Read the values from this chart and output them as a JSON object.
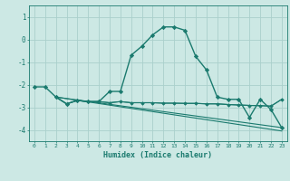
{
  "background_color": "#cce8e4",
  "grid_color": "#aad0cc",
  "line_color": "#1a7a6e",
  "xlabel": "Humidex (Indice chaleur)",
  "xlim": [
    -0.5,
    23.5
  ],
  "ylim": [
    -4.5,
    1.5
  ],
  "yticks": [
    1,
    0,
    -1,
    -2,
    -3,
    -4
  ],
  "xticks": [
    0,
    1,
    2,
    3,
    4,
    5,
    6,
    7,
    8,
    9,
    10,
    11,
    12,
    13,
    14,
    15,
    16,
    17,
    18,
    19,
    20,
    21,
    22,
    23
  ],
  "series": [
    {
      "x": [
        0,
        1,
        2,
        3,
        4,
        5,
        6,
        7,
        8,
        9,
        10,
        11,
        12,
        13,
        14,
        15,
        16,
        17,
        18,
        19,
        20,
        21,
        22,
        23
      ],
      "y": [
        -2.1,
        -2.1,
        -2.55,
        -2.85,
        -2.7,
        -2.75,
        -2.75,
        -2.3,
        -2.3,
        -0.7,
        -0.3,
        0.2,
        0.55,
        0.55,
        0.4,
        -0.75,
        -1.35,
        -2.55,
        -2.65,
        -2.65,
        -3.45,
        -2.65,
        -3.1,
        -3.9
      ],
      "marker": "D",
      "markersize": 2.2,
      "linewidth": 1.0,
      "draw_markers": true
    },
    {
      "x": [
        2,
        3,
        4,
        5,
        6,
        7,
        8,
        9,
        10,
        11,
        12,
        13,
        14,
        15,
        16,
        17,
        18,
        19,
        20,
        21,
        22,
        23
      ],
      "y": [
        -2.55,
        -2.85,
        -2.7,
        -2.75,
        -2.75,
        -2.8,
        -2.75,
        -2.8,
        -2.8,
        -2.8,
        -2.82,
        -2.82,
        -2.83,
        -2.83,
        -2.85,
        -2.85,
        -2.88,
        -2.9,
        -2.92,
        -2.93,
        -2.95,
        -2.65
      ],
      "marker": "D",
      "markersize": 1.8,
      "linewidth": 0.8,
      "draw_markers": true
    },
    {
      "x": [
        2,
        3,
        4,
        5,
        6,
        7,
        8,
        9,
        10,
        11,
        12,
        13,
        14,
        15,
        16,
        17,
        18,
        19,
        20,
        21,
        22,
        23
      ],
      "y": [
        -2.55,
        -2.85,
        -2.7,
        -2.75,
        -2.75,
        -2.8,
        -2.75,
        -2.8,
        -2.8,
        -2.8,
        -2.82,
        -2.82,
        -2.83,
        -2.83,
        -2.85,
        -2.85,
        -2.88,
        -2.9,
        -2.92,
        -2.93,
        -2.95,
        -2.65
      ],
      "marker": null,
      "markersize": 0,
      "linewidth": 0.8,
      "draw_markers": false
    },
    {
      "x": [
        2,
        23
      ],
      "y": [
        -2.55,
        -3.9
      ],
      "marker": null,
      "markersize": 0,
      "linewidth": 0.8,
      "draw_markers": false
    },
    {
      "x": [
        2,
        23
      ],
      "y": [
        -2.55,
        -4.05
      ],
      "marker": null,
      "markersize": 0,
      "linewidth": 0.8,
      "draw_markers": false
    }
  ]
}
